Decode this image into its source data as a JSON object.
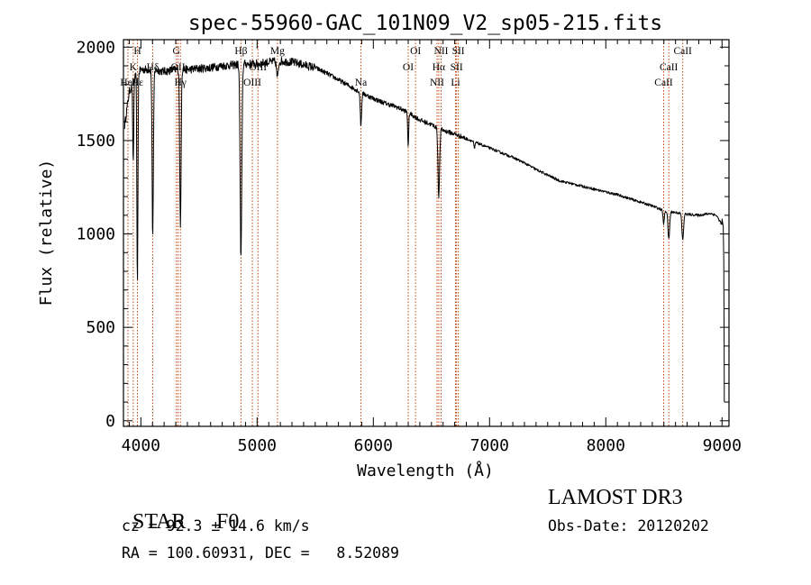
{
  "chart_data": {
    "type": "line",
    "title": "spec-55960-GAC_101N09_V2_sp05-215.fits",
    "xlabel": "Wavelength (Å)",
    "ylabel": "Flux (relative)",
    "xlim": [
      3850,
      9060
    ],
    "ylim": [
      -30,
      2040
    ],
    "xticks": [
      4000,
      5000,
      6000,
      7000,
      8000,
      9000
    ],
    "yticks": [
      0,
      500,
      1000,
      1500,
      2000
    ],
    "xtick_labels": [
      "4000",
      "5000",
      "6000",
      "7000",
      "8000",
      "9000"
    ],
    "ytick_labels": [
      "0",
      "500",
      "1000",
      "1500",
      "2000"
    ],
    "continuum": [
      [
        3860,
        1580
      ],
      [
        3900,
        1760
      ],
      [
        3950,
        1840
      ],
      [
        4000,
        1880
      ],
      [
        4100,
        1880
      ],
      [
        4200,
        1870
      ],
      [
        4300,
        1880
      ],
      [
        4400,
        1880
      ],
      [
        4500,
        1885
      ],
      [
        4600,
        1890
      ],
      [
        4700,
        1900
      ],
      [
        4800,
        1905
      ],
      [
        4900,
        1910
      ],
      [
        5000,
        1910
      ],
      [
        5100,
        1920
      ],
      [
        5200,
        1925
      ],
      [
        5300,
        1920
      ],
      [
        5400,
        1905
      ],
      [
        5500,
        1890
      ],
      [
        5600,
        1860
      ],
      [
        5700,
        1825
      ],
      [
        5800,
        1790
      ],
      [
        5900,
        1755
      ],
      [
        6000,
        1725
      ],
      [
        6100,
        1700
      ],
      [
        6200,
        1680
      ],
      [
        6300,
        1650
      ],
      [
        6400,
        1610
      ],
      [
        6500,
        1585
      ],
      [
        6600,
        1555
      ],
      [
        6700,
        1535
      ],
      [
        6800,
        1510
      ],
      [
        6900,
        1485
      ],
      [
        7000,
        1460
      ],
      [
        7100,
        1435
      ],
      [
        7200,
        1410
      ],
      [
        7300,
        1380
      ],
      [
        7400,
        1345
      ],
      [
        7500,
        1315
      ],
      [
        7600,
        1285
      ],
      [
        7700,
        1270
      ],
      [
        7800,
        1255
      ],
      [
        7900,
        1240
      ],
      [
        8000,
        1225
      ],
      [
        8100,
        1210
      ],
      [
        8200,
        1190
      ],
      [
        8300,
        1170
      ],
      [
        8400,
        1150
      ],
      [
        8500,
        1125
      ],
      [
        8600,
        1115
      ],
      [
        8700,
        1105
      ],
      [
        8800,
        1100
      ],
      [
        8900,
        1110
      ],
      [
        8950,
        1100
      ],
      [
        9000,
        1050
      ]
    ],
    "absorption_lines": [
      {
        "w": 3934,
        "depth": 450,
        "width": 6
      },
      {
        "w": 3970,
        "depth": 1150,
        "width": 6
      },
      {
        "w": 4102,
        "depth": 900,
        "width": 8
      },
      {
        "w": 4340,
        "depth": 850,
        "width": 8
      },
      {
        "w": 4861,
        "depth": 1050,
        "width": 10
      },
      {
        "w": 5175,
        "depth": 90,
        "width": 10
      },
      {
        "w": 5893,
        "depth": 180,
        "width": 8
      },
      {
        "w": 6300,
        "depth": 180,
        "width": 6
      },
      {
        "w": 6563,
        "depth": 360,
        "width": 10
      },
      {
        "w": 6870,
        "depth": 40,
        "width": 6
      },
      {
        "w": 8498,
        "depth": 70,
        "width": 8
      },
      {
        "w": 8542,
        "depth": 150,
        "width": 10
      },
      {
        "w": 8662,
        "depth": 140,
        "width": 10
      }
    ],
    "tail": [
      [
        9000,
        1080
      ],
      [
        9010,
        1040
      ],
      [
        9015,
        860
      ],
      [
        9018,
        400
      ],
      [
        9020,
        100
      ]
    ],
    "line_markers": [
      {
        "w": 3889,
        "row": 3,
        "label": "HeI"
      },
      {
        "w": 3934,
        "row": 2,
        "label": "K"
      },
      {
        "w": 3970,
        "row": 1,
        "label": "H"
      },
      {
        "w": 3970,
        "row": 3,
        "label": "Hε"
      },
      {
        "w": 4102,
        "row": 2,
        "label": "Hδ"
      },
      {
        "w": 4305,
        "row": 1,
        "label": "G"
      },
      {
        "w": 4320,
        "row": 2,
        "label": "OII"
      },
      {
        "w": 4340,
        "row": 3,
        "label": "Hγ"
      },
      {
        "w": 4861,
        "row": 1,
        "label": "Hβ"
      },
      {
        "w": 4959,
        "row": 3,
        "label": "OIII"
      },
      {
        "w": 5007,
        "row": 2,
        "label": "OIII"
      },
      {
        "w": 5175,
        "row": 1,
        "label": "Mg"
      },
      {
        "w": 5893,
        "row": 3,
        "label": "Na"
      },
      {
        "w": 6300,
        "row": 2,
        "label": "OI"
      },
      {
        "w": 6363,
        "row": 1,
        "label": "OI"
      },
      {
        "w": 6548,
        "row": 3,
        "label": "NII"
      },
      {
        "w": 6563,
        "row": 2,
        "label": "Hα"
      },
      {
        "w": 6583,
        "row": 1,
        "label": "NII"
      },
      {
        "w": 6707,
        "row": 3,
        "label": "Li"
      },
      {
        "w": 6716,
        "row": 2,
        "label": "SII"
      },
      {
        "w": 6731,
        "row": 1,
        "label": "SII"
      },
      {
        "w": 8498,
        "row": 3,
        "label": "CaII"
      },
      {
        "w": 8542,
        "row": 2,
        "label": "CaII"
      },
      {
        "w": 8662,
        "row": 1,
        "label": "CaII"
      }
    ],
    "colors": {
      "spectrum": "#000000",
      "marker": "#c1440e"
    }
  },
  "info": {
    "class_label": "STAR",
    "subclass": "F0",
    "survey": "LAMOST DR3",
    "cz": "cz = 92.3 ± 14.6 km/s",
    "obs_date": "Obs-Date: 20120202",
    "coords": "RA = 100.60931, DEC =   8.52089"
  }
}
